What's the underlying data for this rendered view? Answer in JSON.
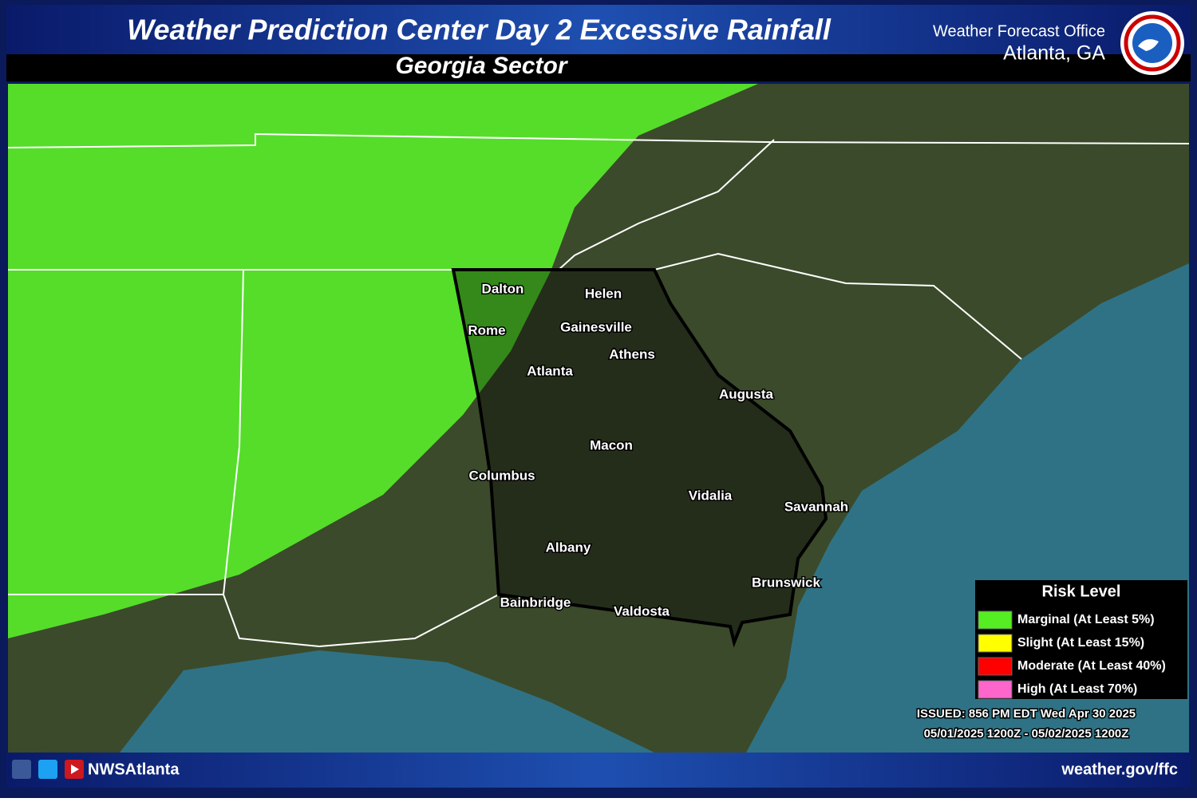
{
  "header": {
    "title": "Weather Prediction Center Day 2 Excessive Rainfall",
    "subtitle": "Georgia Sector",
    "office": "Weather Forecast Office",
    "location": "Atlanta, GA"
  },
  "cities": [
    "Dalton",
    "Helen",
    "Rome",
    "Gainesville",
    "Athens",
    "Atlanta",
    "Augusta",
    "Macon",
    "Columbus",
    "Vidalia",
    "Savannah",
    "Albany",
    "Brunswick",
    "Bainbridge",
    "Valdosta"
  ],
  "legend": {
    "title": "Risk Level",
    "items": [
      {
        "label": "Marginal (At Least 5%)",
        "color": "#55ee22"
      },
      {
        "label": "Slight (At Least 15%)",
        "color": "#ffff00"
      },
      {
        "label": "Moderate (At Least 40%)",
        "color": "#ff0000"
      },
      {
        "label": "High (At Least 70%)",
        "color": "#ff66cc"
      }
    ]
  },
  "issued": "ISSUED: 856 PM EDT Wed Apr 30 2025",
  "valid": "05/01/2025 1200Z - 05/02/2025 1200Z",
  "footer": {
    "handle": "NWSAtlanta",
    "url": "weather.gov/ffc"
  }
}
